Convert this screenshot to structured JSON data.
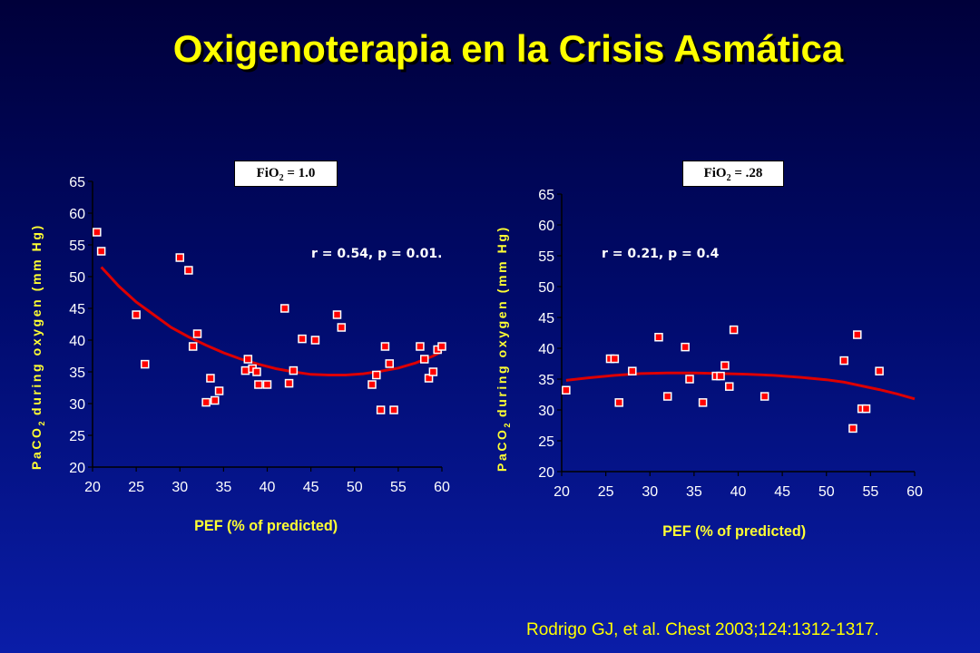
{
  "slide": {
    "title": "Oxigenoterapia en la Crisis Asmática",
    "citation": "Rodrigo GJ, et al. Chest 2003;124:1312-1317."
  },
  "colors": {
    "title": "#ffff00",
    "axis_labels": "#ffff33",
    "tick_labels": "#ffffff",
    "trend_line": "#dd0000",
    "marker_fill": "#ff0000",
    "marker_border": "#ffffff",
    "background_top": "#00003a",
    "background_bottom": "#0a1da8"
  },
  "chart_data": [
    {
      "type": "scatter",
      "box_label": {
        "main": "FiO",
        "sub": "2",
        "rest": " = 1.0"
      },
      "annotation": "r = 0.54, p = 0.01.",
      "xlabel": "PEF (% of predicted)",
      "ylabel": {
        "pre": "PaCO",
        "sub": "2",
        "post": " during oxygen (mm Hg)"
      },
      "xlim": [
        20,
        60
      ],
      "ylim": [
        20,
        65
      ],
      "xticks": [
        20,
        25,
        30,
        35,
        40,
        45,
        50,
        55,
        60
      ],
      "yticks": [
        20,
        25,
        30,
        35,
        40,
        45,
        50,
        55,
        60,
        65
      ],
      "grid": false,
      "series": [
        {
          "values": [
            [
              20.5,
              57
            ],
            [
              21,
              54
            ],
            [
              25,
              44
            ],
            [
              26,
              36.2
            ],
            [
              30,
              53
            ],
            [
              31,
              51
            ],
            [
              31.5,
              39
            ],
            [
              32,
              41
            ],
            [
              33,
              30.2
            ],
            [
              33.5,
              34
            ],
            [
              34,
              30.5
            ],
            [
              34.5,
              32
            ],
            [
              37.5,
              35.2
            ],
            [
              37.8,
              37
            ],
            [
              38.3,
              35.5
            ],
            [
              38.8,
              35
            ],
            [
              39,
              33
            ],
            [
              40,
              33
            ],
            [
              42,
              45
            ],
            [
              42.5,
              33.2
            ],
            [
              43,
              35.2
            ],
            [
              44,
              40.2
            ],
            [
              45.5,
              40
            ],
            [
              48,
              44
            ],
            [
              48.5,
              42
            ],
            [
              52,
              33
            ],
            [
              52.5,
              34.5
            ],
            [
              53,
              29
            ],
            [
              53.5,
              39
            ],
            [
              54,
              36.3
            ],
            [
              54.5,
              29
            ],
            [
              57.5,
              39
            ],
            [
              58,
              37
            ],
            [
              58.5,
              34
            ],
            [
              59,
              35
            ],
            [
              59.5,
              38.5
            ],
            [
              60,
              39
            ]
          ]
        }
      ],
      "trend": [
        [
          21,
          51.5
        ],
        [
          23,
          48.5
        ],
        [
          25,
          46
        ],
        [
          27,
          44
        ],
        [
          29,
          42
        ],
        [
          31,
          40.5
        ],
        [
          33,
          39.2
        ],
        [
          35,
          38
        ],
        [
          37,
          37
        ],
        [
          39,
          36.2
        ],
        [
          41,
          35.5
        ],
        [
          43,
          35
        ],
        [
          45,
          34.6
        ],
        [
          47,
          34.5
        ],
        [
          49,
          34.5
        ],
        [
          51,
          34.7
        ],
        [
          53,
          35.1
        ],
        [
          55,
          35.6
        ],
        [
          57,
          36.4
        ],
        [
          59,
          37.5
        ],
        [
          60,
          38.2
        ]
      ]
    },
    {
      "type": "scatter",
      "box_label": {
        "main": "FiO",
        "sub": "2",
        "rest": " = .28"
      },
      "annotation": "r = 0.21, p = 0.4",
      "xlabel": "PEF (% of predicted)",
      "ylabel": {
        "pre": "PaCO",
        "sub": "2",
        "post": " during oxygen (mm Hg)"
      },
      "xlim": [
        20,
        60
      ],
      "ylim": [
        20,
        65
      ],
      "xticks": [
        20,
        25,
        30,
        35,
        40,
        45,
        50,
        55,
        60
      ],
      "yticks": [
        20,
        25,
        30,
        35,
        40,
        45,
        50,
        55,
        60,
        65
      ],
      "grid": false,
      "series": [
        {
          "values": [
            [
              20.5,
              33.2
            ],
            [
              25.5,
              38.3
            ],
            [
              26,
              38.3
            ],
            [
              26.5,
              31.2
            ],
            [
              28,
              36.3
            ],
            [
              31,
              41.8
            ],
            [
              32,
              32.2
            ],
            [
              34,
              40.2
            ],
            [
              34.5,
              35
            ],
            [
              36,
              31.2
            ],
            [
              37.5,
              35.5
            ],
            [
              38,
              35.5
            ],
            [
              38.5,
              37.2
            ],
            [
              39,
              33.8
            ],
            [
              39.5,
              43
            ],
            [
              43,
              32.2
            ],
            [
              52,
              38
            ],
            [
              53,
              27
            ],
            [
              53.5,
              42.2
            ],
            [
              54,
              30.2
            ],
            [
              54.5,
              30.2
            ],
            [
              56,
              36.3
            ]
          ]
        }
      ],
      "trend": [
        [
          20.5,
          34.8
        ],
        [
          23,
          35.2
        ],
        [
          26,
          35.6
        ],
        [
          29,
          35.9
        ],
        [
          32,
          36
        ],
        [
          35,
          36
        ],
        [
          38,
          35.9
        ],
        [
          41,
          35.8
        ],
        [
          44,
          35.6
        ],
        [
          47,
          35.3
        ],
        [
          50,
          34.9
        ],
        [
          52,
          34.5
        ],
        [
          54,
          33.9
        ],
        [
          56,
          33.3
        ],
        [
          58,
          32.6
        ],
        [
          60,
          31.8
        ]
      ]
    }
  ]
}
